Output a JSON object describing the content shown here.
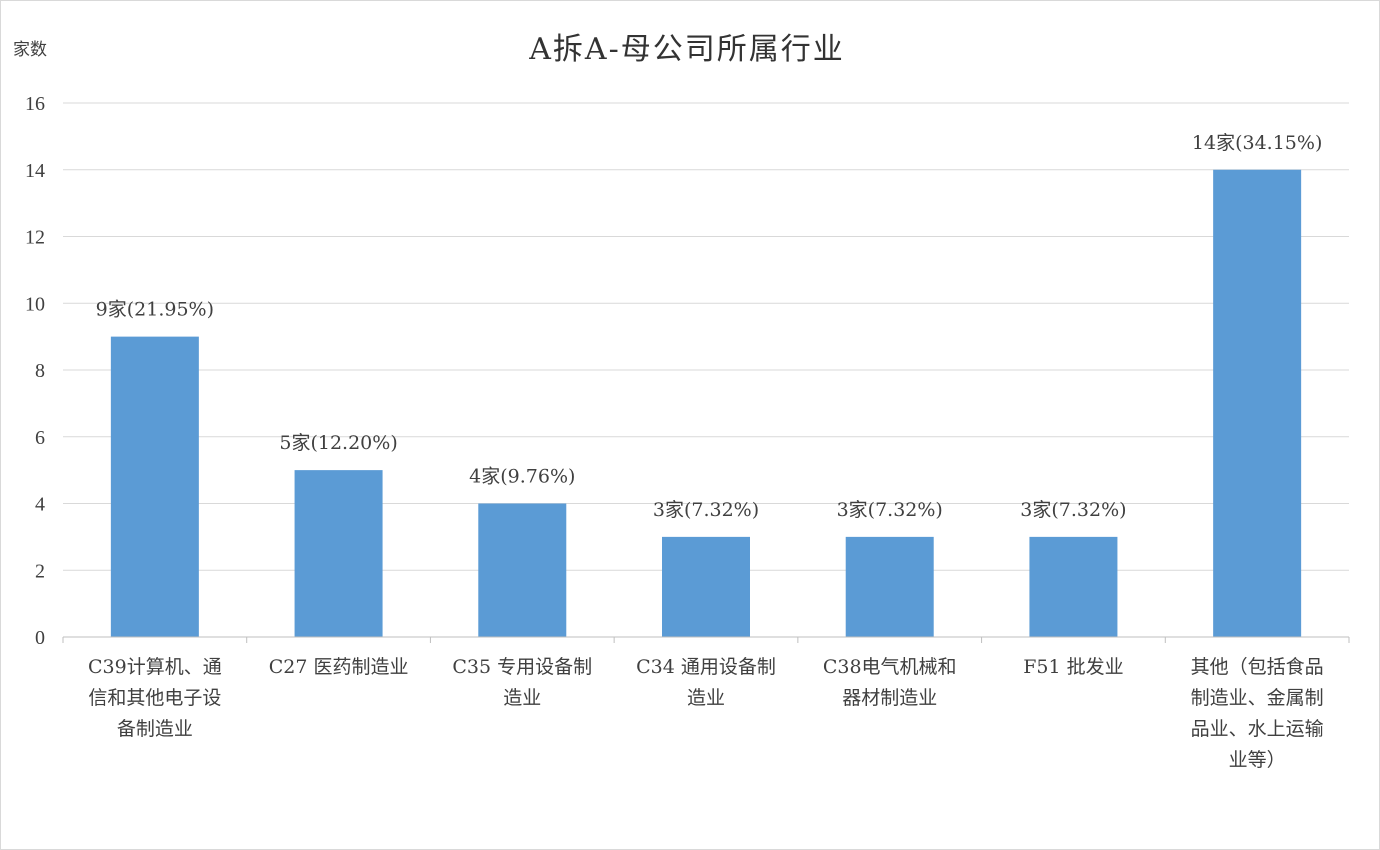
{
  "chart_data": {
    "type": "bar",
    "title": "A拆A-母公司所属行业",
    "ylabel": "家数",
    "xlabel": "",
    "ylim": [
      0,
      16
    ],
    "yticks": [
      "0",
      "2",
      "4",
      "6",
      "8",
      "10",
      "12",
      "14",
      "16"
    ],
    "grid": true,
    "legend": "none",
    "bar_color": "#5b9bd5",
    "categories": [
      [
        "C39计算机、通",
        "信和其他电子设",
        "备制造业"
      ],
      [
        "C27 医药制造业"
      ],
      [
        "C35 专用设备制",
        "造业"
      ],
      [
        "C34 通用设备制",
        "造业"
      ],
      [
        "C38电气机械和",
        "器材制造业"
      ],
      [
        "F51 批发业"
      ],
      [
        "其他（包括食品",
        "制造业、金属制",
        "品业、水上运输",
        "业等）"
      ]
    ],
    "values": [
      9,
      5,
      4,
      3,
      3,
      3,
      14
    ],
    "data_labels": [
      "9家(21.95%)",
      "5家(12.20%)",
      "4家(9.76%)",
      "3家(7.32%)",
      "3家(7.32%)",
      "3家(7.32%)",
      "14家(34.15%)"
    ]
  }
}
